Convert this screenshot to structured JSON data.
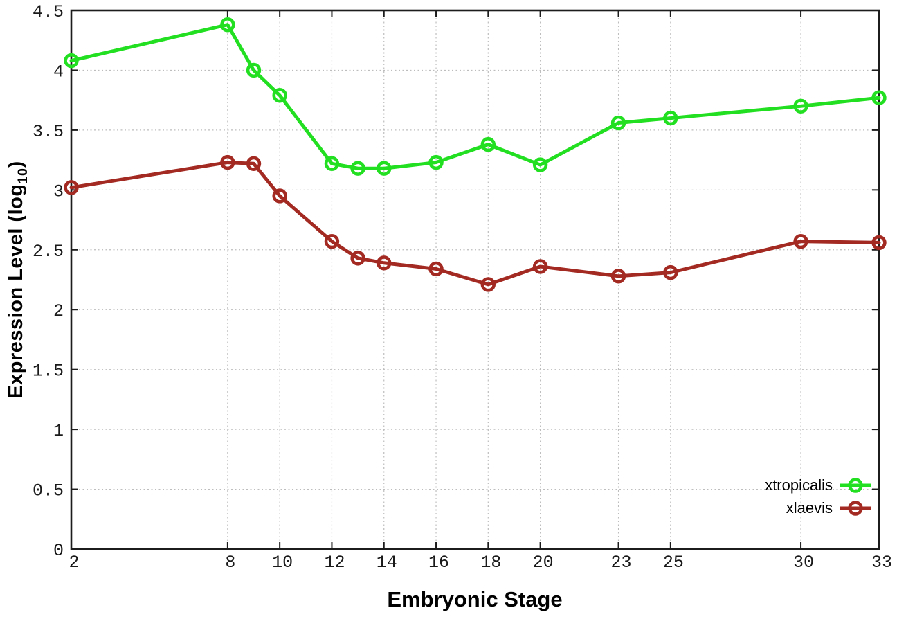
{
  "chart_data": {
    "type": "line",
    "title": "",
    "xlabel": "Embryonic Stage",
    "ylabel": {
      "prefix": "Expression Level (log",
      "sub": "10",
      "suffix": ")"
    },
    "xlim": [
      2,
      33
    ],
    "ylim": [
      0,
      4.5
    ],
    "grid": true,
    "legend_position": "inside-bottom-right",
    "x_ticks": {
      "values": [
        2,
        8,
        10,
        12,
        14,
        16,
        18,
        20,
        23,
        25,
        30,
        33
      ],
      "labels": [
        "2",
        "8",
        "10",
        "12",
        "14",
        "16",
        "18",
        "20",
        "23",
        "25",
        "30",
        "33"
      ]
    },
    "y_ticks": {
      "values": [
        0,
        0.5,
        1,
        1.5,
        2,
        2.5,
        3,
        3.5,
        4,
        4.5
      ],
      "labels": [
        "0",
        "0.5",
        "1",
        "1.5",
        "2",
        "2.5",
        "3",
        "3.5",
        "4",
        "4.5"
      ]
    },
    "x": [
      2,
      8,
      9,
      10,
      12,
      13,
      14,
      16,
      18,
      20,
      23,
      25,
      30,
      33
    ],
    "series": [
      {
        "name": "xtropicalis",
        "color": "#22df22",
        "values": [
          4.08,
          4.38,
          4.0,
          3.79,
          3.22,
          3.18,
          3.18,
          3.23,
          3.38,
          3.21,
          3.56,
          3.6,
          3.7,
          3.77
        ]
      },
      {
        "name": "xlaevis",
        "color": "#a32a22",
        "values": [
          3.02,
          3.23,
          3.22,
          2.95,
          2.57,
          2.43,
          2.39,
          2.34,
          2.21,
          2.36,
          2.28,
          2.31,
          2.57,
          2.56
        ]
      }
    ]
  },
  "colors": {
    "background": "#ffffff",
    "plot_border": "#1c1c1c",
    "grid": "#bdbdbd",
    "tick_text": "#1a1a1a"
  }
}
